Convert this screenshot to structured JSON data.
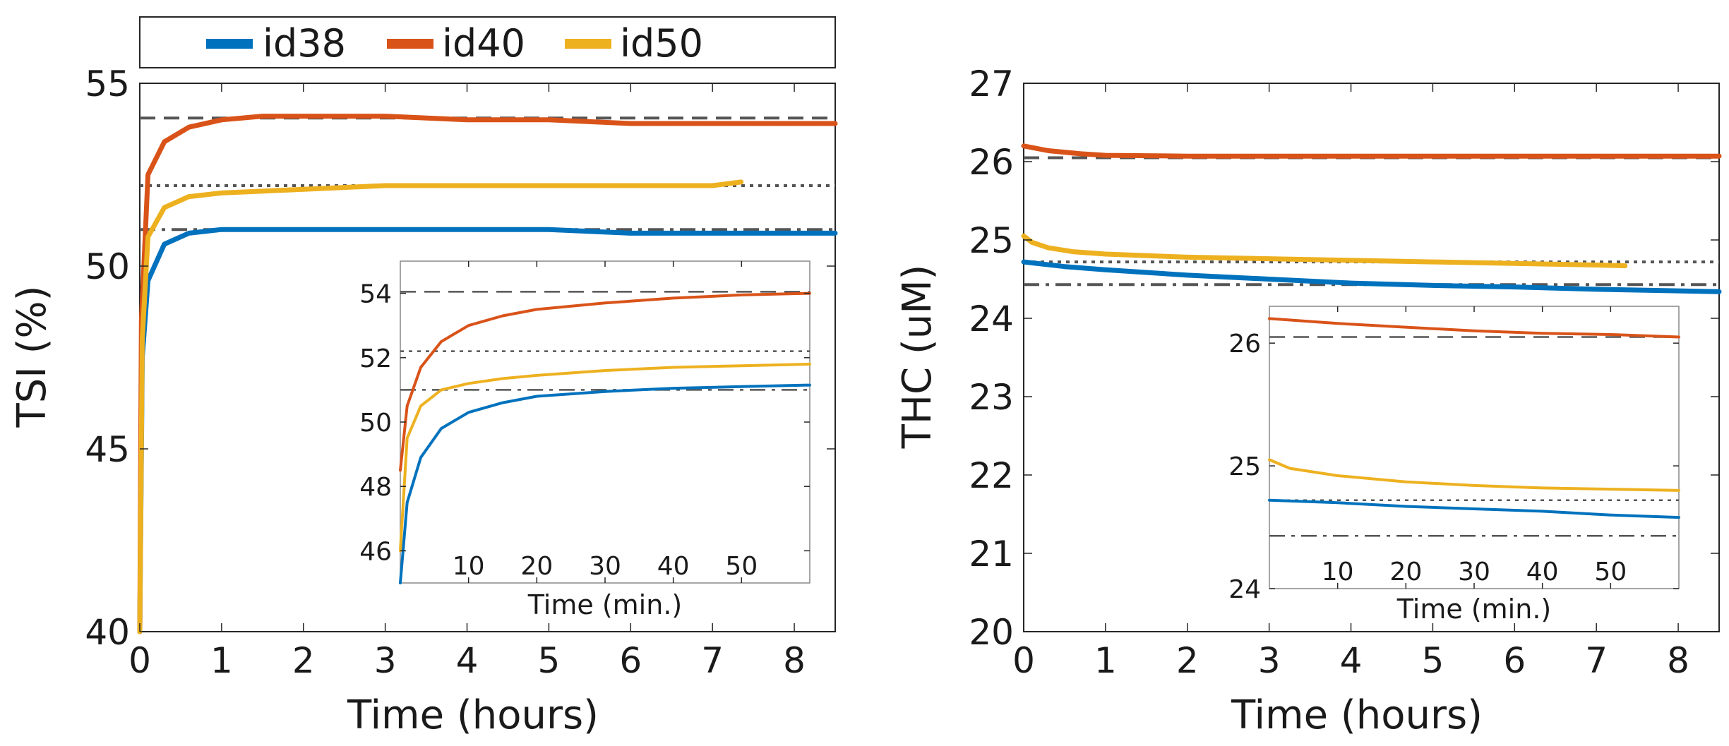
{
  "chart_data": [
    {
      "type": "line",
      "ylabel": "TSI (%)",
      "xlabel": "Time (hours)",
      "xlim": [
        0,
        8.5
      ],
      "ylim": [
        40,
        55
      ],
      "xticks": [
        "0",
        "1",
        "2",
        "3",
        "4",
        "5",
        "6",
        "7",
        "8"
      ],
      "yticks": [
        "40",
        "45",
        "50",
        "55"
      ],
      "legend": {
        "position": "top",
        "entries": [
          "id38",
          "id40",
          "id50"
        ]
      },
      "series": [
        {
          "name": "id38",
          "color": "#0072BD",
          "points": [
            [
              0,
              40
            ],
            [
              0.03,
              47.5
            ],
            [
              0.1,
              49.6
            ],
            [
              0.3,
              50.6
            ],
            [
              0.6,
              50.9
            ],
            [
              1,
              51.0
            ],
            [
              2,
              51.0
            ],
            [
              3,
              51.0
            ],
            [
              4,
              51.0
            ],
            [
              5,
              51.0
            ],
            [
              6,
              50.9
            ],
            [
              7,
              50.9
            ],
            [
              8,
              50.9
            ],
            [
              8.5,
              50.9
            ]
          ]
        },
        {
          "name": "id40",
          "color": "#D95319",
          "points": [
            [
              0,
              40
            ],
            [
              0.02,
              48.5
            ],
            [
              0.1,
              52.5
            ],
            [
              0.3,
              53.4
            ],
            [
              0.6,
              53.8
            ],
            [
              1,
              54.0
            ],
            [
              1.5,
              54.1
            ],
            [
              2,
              54.1
            ],
            [
              3,
              54.1
            ],
            [
              4,
              54.0
            ],
            [
              5,
              54.0
            ],
            [
              6,
              53.9
            ],
            [
              7,
              53.9
            ],
            [
              8,
              53.9
            ],
            [
              8.5,
              53.9
            ]
          ]
        },
        {
          "name": "id50",
          "color": "#EDB120",
          "points": [
            [
              0,
              40
            ],
            [
              0.03,
              48
            ],
            [
              0.1,
              50.8
            ],
            [
              0.3,
              51.6
            ],
            [
              0.6,
              51.9
            ],
            [
              1,
              52.0
            ],
            [
              2,
              52.1
            ],
            [
              3,
              52.2
            ],
            [
              4,
              52.2
            ],
            [
              5,
              52.2
            ],
            [
              6,
              52.2
            ],
            [
              7,
              52.2
            ],
            [
              7.35,
              52.3
            ]
          ]
        }
      ],
      "reference_lines": [
        {
          "y": 54.05,
          "style": "dashed"
        },
        {
          "y": 52.2,
          "style": "dotted"
        },
        {
          "y": 51.0,
          "style": "dashdot"
        }
      ],
      "inset": {
        "xlabel": "Time (min.)",
        "xlim": [
          0,
          60
        ],
        "ylim": [
          45,
          55
        ],
        "xticks": [
          "10",
          "20",
          "30",
          "40",
          "50"
        ],
        "yticks": [
          "46",
          "48",
          "50",
          "52",
          "54"
        ],
        "series": [
          {
            "name": "id38",
            "points": [
              [
                0,
                45
              ],
              [
                1,
                47.5
              ],
              [
                3,
                48.9
              ],
              [
                6,
                49.8
              ],
              [
                10,
                50.3
              ],
              [
                15,
                50.6
              ],
              [
                20,
                50.8
              ],
              [
                30,
                50.95
              ],
              [
                40,
                51.05
              ],
              [
                50,
                51.1
              ],
              [
                60,
                51.15
              ]
            ]
          },
          {
            "name": "id40",
            "points": [
              [
                0,
                48.5
              ],
              [
                1,
                50.5
              ],
              [
                3,
                51.7
              ],
              [
                6,
                52.5
              ],
              [
                10,
                53.0
              ],
              [
                15,
                53.3
              ],
              [
                20,
                53.5
              ],
              [
                30,
                53.7
              ],
              [
                40,
                53.85
              ],
              [
                50,
                53.95
              ],
              [
                60,
                54.0
              ]
            ]
          },
          {
            "name": "id50",
            "points": [
              [
                0,
                46
              ],
              [
                1,
                49.5
              ],
              [
                3,
                50.5
              ],
              [
                6,
                51.0
              ],
              [
                10,
                51.2
              ],
              [
                15,
                51.35
              ],
              [
                20,
                51.45
              ],
              [
                30,
                51.6
              ],
              [
                40,
                51.7
              ],
              [
                50,
                51.75
              ],
              [
                60,
                51.8
              ]
            ]
          }
        ],
        "reference_lines": [
          {
            "y": 54.05,
            "style": "dashed"
          },
          {
            "y": 52.2,
            "style": "dotted"
          },
          {
            "y": 51.0,
            "style": "dashdot"
          }
        ]
      }
    },
    {
      "type": "line",
      "ylabel": "THC (uM)",
      "xlabel": "Time (hours)",
      "xlim": [
        0,
        8.5
      ],
      "ylim": [
        20,
        27
      ],
      "xticks": [
        "0",
        "1",
        "2",
        "3",
        "4",
        "5",
        "6",
        "7",
        "8"
      ],
      "yticks": [
        "20",
        "21",
        "22",
        "23",
        "24",
        "25",
        "26",
        "27"
      ],
      "series": [
        {
          "name": "id38",
          "color": "#0072BD",
          "points": [
            [
              0,
              24.72
            ],
            [
              0.5,
              24.66
            ],
            [
              1,
              24.62
            ],
            [
              2,
              24.55
            ],
            [
              3,
              24.5
            ],
            [
              4,
              24.45
            ],
            [
              5,
              24.42
            ],
            [
              6,
              24.4
            ],
            [
              7,
              24.37
            ],
            [
              8,
              24.35
            ],
            [
              8.5,
              24.34
            ]
          ]
        },
        {
          "name": "id40",
          "color": "#D95319",
          "points": [
            [
              0,
              26.2
            ],
            [
              0.3,
              26.14
            ],
            [
              0.7,
              26.1
            ],
            [
              1,
              26.08
            ],
            [
              2,
              26.07
            ],
            [
              3,
              26.07
            ],
            [
              4,
              26.07
            ],
            [
              5,
              26.07
            ],
            [
              6,
              26.07
            ],
            [
              7,
              26.07
            ],
            [
              8,
              26.07
            ],
            [
              8.5,
              26.07
            ]
          ]
        },
        {
          "name": "id50",
          "color": "#EDB120",
          "points": [
            [
              0,
              25.05
            ],
            [
              0.1,
              24.97
            ],
            [
              0.3,
              24.9
            ],
            [
              0.6,
              24.85
            ],
            [
              1,
              24.82
            ],
            [
              2,
              24.78
            ],
            [
              3,
              24.76
            ],
            [
              4,
              24.74
            ],
            [
              5,
              24.72
            ],
            [
              6,
              24.7
            ],
            [
              7,
              24.68
            ],
            [
              7.35,
              24.67
            ]
          ]
        }
      ],
      "reference_lines": [
        {
          "y": 26.05,
          "style": "dashed"
        },
        {
          "y": 24.72,
          "style": "dotted"
        },
        {
          "y": 24.43,
          "style": "dashdot"
        }
      ],
      "inset": {
        "xlabel": "Time (min.)",
        "xlim": [
          0,
          60
        ],
        "ylim": [
          24,
          26.3
        ],
        "xticks": [
          "10",
          "20",
          "30",
          "40",
          "50"
        ],
        "yticks": [
          "24",
          "25",
          "26"
        ],
        "series": [
          {
            "name": "id38",
            "points": [
              [
                0,
                24.72
              ],
              [
                10,
                24.7
              ],
              [
                20,
                24.67
              ],
              [
                30,
                24.65
              ],
              [
                40,
                24.63
              ],
              [
                50,
                24.6
              ],
              [
                60,
                24.58
              ]
            ]
          },
          {
            "name": "id40",
            "points": [
              [
                0,
                26.2
              ],
              [
                10,
                26.16
              ],
              [
                20,
                26.13
              ],
              [
                30,
                26.1
              ],
              [
                40,
                26.08
              ],
              [
                50,
                26.07
              ],
              [
                60,
                26.05
              ]
            ]
          },
          {
            "name": "id50",
            "points": [
              [
                0,
                25.05
              ],
              [
                3,
                24.98
              ],
              [
                10,
                24.92
              ],
              [
                20,
                24.87
              ],
              [
                30,
                24.84
              ],
              [
                40,
                24.82
              ],
              [
                50,
                24.81
              ],
              [
                60,
                24.8
              ]
            ]
          }
        ],
        "reference_lines": [
          {
            "y": 26.05,
            "style": "dashed"
          },
          {
            "y": 24.72,
            "style": "dotted"
          },
          {
            "y": 24.43,
            "style": "dashdot"
          }
        ]
      }
    }
  ]
}
